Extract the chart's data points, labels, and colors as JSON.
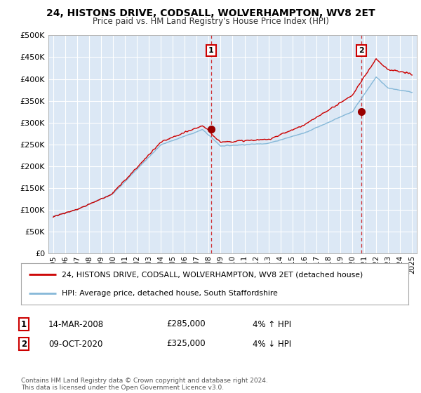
{
  "title": "24, HISTONS DRIVE, CODSALL, WOLVERHAMPTON, WV8 2ET",
  "subtitle": "Price paid vs. HM Land Registry's House Price Index (HPI)",
  "ylabel_ticks": [
    "£0",
    "£50K",
    "£100K",
    "£150K",
    "£200K",
    "£250K",
    "£300K",
    "£350K",
    "£400K",
    "£450K",
    "£500K"
  ],
  "ytick_values": [
    0,
    50000,
    100000,
    150000,
    200000,
    250000,
    300000,
    350000,
    400000,
    450000,
    500000
  ],
  "ylim": [
    0,
    500000
  ],
  "background_color": "#ffffff",
  "plot_bg_color": "#dce8f5",
  "grid_color": "#ffffff",
  "red_line_color": "#cc0000",
  "blue_line_color": "#85b8d8",
  "marker1_date": 2008.2,
  "marker1_value": 285000,
  "marker2_date": 2020.78,
  "marker2_value": 325000,
  "vline1_x": 2008.2,
  "vline2_x": 2020.78,
  "legend_line1": "24, HISTONS DRIVE, CODSALL, WOLVERHAMPTON, WV8 2ET (detached house)",
  "legend_line2": "HPI: Average price, detached house, South Staffordshire",
  "table_row1_num": "1",
  "table_row1_date": "14-MAR-2008",
  "table_row1_price": "£285,000",
  "table_row1_hpi": "4% ↑ HPI",
  "table_row2_num": "2",
  "table_row2_date": "09-OCT-2020",
  "table_row2_price": "£325,000",
  "table_row2_hpi": "4% ↓ HPI",
  "footer": "Contains HM Land Registry data © Crown copyright and database right 2024.\nThis data is licensed under the Open Government Licence v3.0.",
  "xtick_years": [
    1995,
    1996,
    1997,
    1998,
    1999,
    2000,
    2001,
    2002,
    2003,
    2004,
    2005,
    2006,
    2007,
    2008,
    2009,
    2010,
    2011,
    2012,
    2013,
    2014,
    2015,
    2016,
    2017,
    2018,
    2019,
    2020,
    2021,
    2022,
    2023,
    2024,
    2025
  ]
}
